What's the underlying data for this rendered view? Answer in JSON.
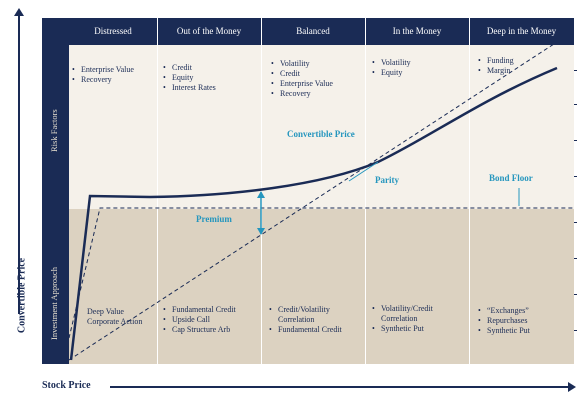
{
  "axes": {
    "y_label": "Convertible Price",
    "x_label": "Stock Price"
  },
  "bands": {
    "risk": "Risk Factors",
    "investment": "Investment Approach"
  },
  "columns": [
    {
      "header": "Distressed",
      "risk": [
        "Enterprise Value",
        "Recovery"
      ],
      "investment": [
        "",
        "Deep Value",
        "Corporate Action"
      ],
      "investment_bullets": false
    },
    {
      "header": "Out of the Money",
      "risk": [
        "Credit",
        "Equity",
        "Interest Rates"
      ],
      "investment": [
        "Fundamental Credit",
        "Upside Call",
        "Cap Structure Arb"
      ],
      "investment_bullets": true
    },
    {
      "header": "Balanced",
      "risk": [
        "Volatility",
        "Credit",
        "Enterprise Value",
        "Recovery"
      ],
      "investment": [
        "Credit/Volatility Correlation",
        "Fundamental Credit"
      ],
      "investment_bullets": true
    },
    {
      "header": "In the Money",
      "risk": [
        "Volatility",
        "Equity"
      ],
      "investment": [
        "Volatility/Credit Correlation",
        "Synthetic Put"
      ],
      "investment_bullets": true
    },
    {
      "header": "Deep in the Money",
      "risk": [
        "Funding",
        "Margin"
      ],
      "investment": [
        "“Exchanges”",
        "Repurchases",
        "Synthetic Put"
      ],
      "investment_bullets": true
    }
  ],
  "annotations": {
    "convertible_price": "Convertible Price",
    "parity": "Parity",
    "bond_floor": "Bond Floor",
    "premium": "Premium"
  },
  "colors": {
    "navy": "#1a2b55",
    "accent": "#2596be",
    "risk_bg": "#f5f1ea",
    "invest_bg": "#dcd2c1"
  }
}
